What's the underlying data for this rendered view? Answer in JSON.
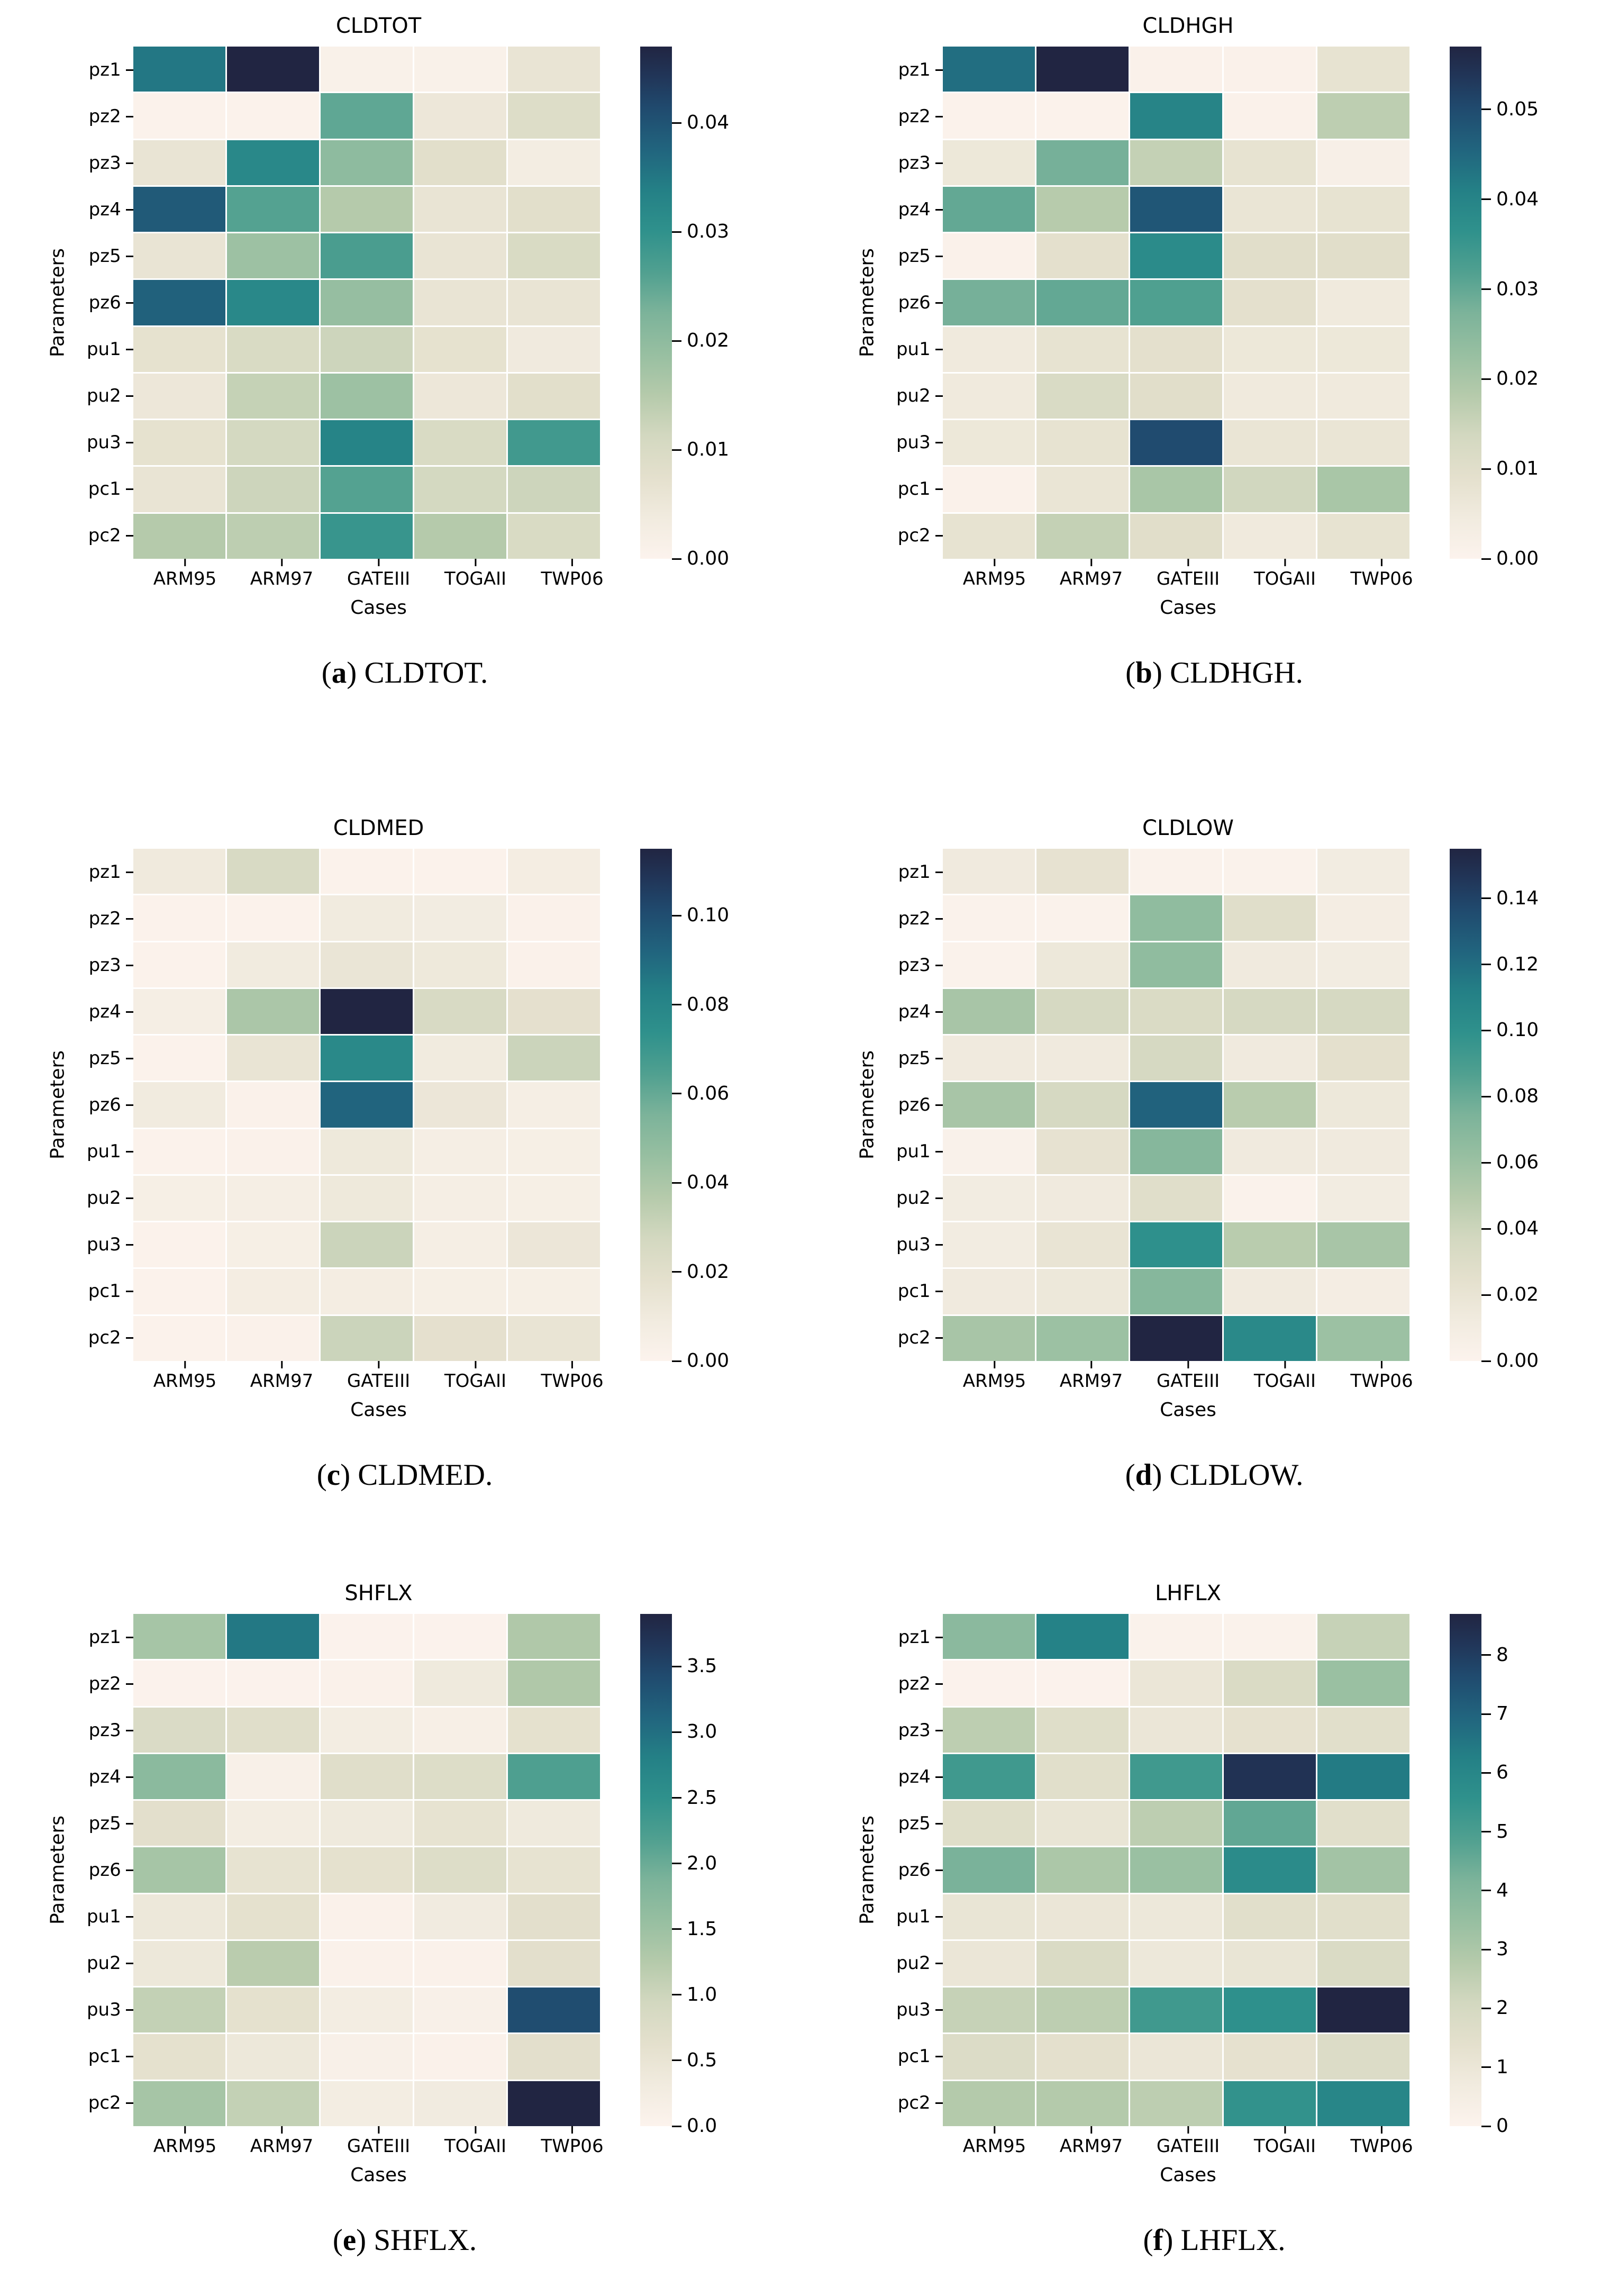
{
  "page": {
    "background": "#ffffff"
  },
  "caption_format": {
    "open": "(",
    "close": ") "
  },
  "colormap": {
    "name": "cream-sage-teal-navy",
    "stops": [
      [
        0.0,
        "#fcf3ed"
      ],
      [
        0.08,
        "#f1ebdf"
      ],
      [
        0.16,
        "#e4e0cd"
      ],
      [
        0.24,
        "#d3d8c0"
      ],
      [
        0.32,
        "#b5caab"
      ],
      [
        0.4,
        "#97bfa1"
      ],
      [
        0.48,
        "#7cb39a"
      ],
      [
        0.56,
        "#50a090"
      ],
      [
        0.64,
        "#2f918c"
      ],
      [
        0.72,
        "#248086"
      ],
      [
        0.8,
        "#21647e"
      ],
      [
        0.88,
        "#204a6e"
      ],
      [
        0.94,
        "#213659"
      ],
      [
        1.0,
        "#212542"
      ]
    ]
  },
  "chart_data": [
    {
      "type": "heatmap",
      "title": "CLDTOT",
      "caption_letter": "a",
      "caption_text": "CLDTOT.",
      "xlabel": "Cases",
      "ylabel": "Parameters",
      "x_categories": [
        "ARM95",
        "ARM97",
        "GATEIII",
        "TOGAII",
        "TWP06"
      ],
      "y_categories": [
        "pz1",
        "pz2",
        "pz3",
        "pz4",
        "pz5",
        "pz6",
        "pu1",
        "pu2",
        "pu3",
        "pc1",
        "pc2"
      ],
      "vmin": 0,
      "vmax": 0.047,
      "colorbar_ticks": [
        {
          "v": 0.0,
          "label": "0.00"
        },
        {
          "v": 0.01,
          "label": "0.01"
        },
        {
          "v": 0.02,
          "label": "0.02"
        },
        {
          "v": 0.03,
          "label": "0.03"
        },
        {
          "v": 0.04,
          "label": "0.04"
        }
      ],
      "values": [
        [
          0.035,
          0.047,
          0.001,
          0.001,
          0.006
        ],
        [
          0.0005,
          0.0005,
          0.025,
          0.005,
          0.009
        ],
        [
          0.006,
          0.032,
          0.02,
          0.008,
          0.003
        ],
        [
          0.039,
          0.026,
          0.015,
          0.006,
          0.008
        ],
        [
          0.006,
          0.018,
          0.027,
          0.006,
          0.01
        ],
        [
          0.038,
          0.032,
          0.019,
          0.006,
          0.006
        ],
        [
          0.007,
          0.01,
          0.012,
          0.007,
          0.004
        ],
        [
          0.005,
          0.013,
          0.018,
          0.005,
          0.008
        ],
        [
          0.007,
          0.011,
          0.033,
          0.01,
          0.028
        ],
        [
          0.006,
          0.012,
          0.026,
          0.011,
          0.012
        ],
        [
          0.015,
          0.014,
          0.029,
          0.015,
          0.01
        ]
      ]
    },
    {
      "type": "heatmap",
      "title": "CLDHGH",
      "caption_letter": "b",
      "caption_text": "CLDHGH.",
      "xlabel": "Cases",
      "ylabel": "Parameters",
      "x_categories": [
        "ARM95",
        "ARM97",
        "GATEIII",
        "TOGAII",
        "TWP06"
      ],
      "y_categories": [
        "pz1",
        "pz2",
        "pz3",
        "pz4",
        "pz5",
        "pz6",
        "pu1",
        "pu2",
        "pu3",
        "pc1",
        "pc2"
      ],
      "vmin": 0,
      "vmax": 0.057,
      "colorbar_ticks": [
        {
          "v": 0.0,
          "label": "0.00"
        },
        {
          "v": 0.01,
          "label": "0.01"
        },
        {
          "v": 0.02,
          "label": "0.02"
        },
        {
          "v": 0.03,
          "label": "0.03"
        },
        {
          "v": 0.04,
          "label": "0.04"
        },
        {
          "v": 0.05,
          "label": "0.05"
        }
      ],
      "values": [
        [
          0.044,
          0.057,
          0.001,
          0.001,
          0.008
        ],
        [
          0.0005,
          0.0005,
          0.04,
          0.001,
          0.017
        ],
        [
          0.006,
          0.028,
          0.016,
          0.008,
          0.002
        ],
        [
          0.03,
          0.018,
          0.048,
          0.007,
          0.008
        ],
        [
          0.001,
          0.009,
          0.038,
          0.01,
          0.01
        ],
        [
          0.028,
          0.03,
          0.032,
          0.009,
          0.005
        ],
        [
          0.005,
          0.008,
          0.009,
          0.006,
          0.006
        ],
        [
          0.005,
          0.012,
          0.01,
          0.005,
          0.005
        ],
        [
          0.006,
          0.008,
          0.05,
          0.007,
          0.007
        ],
        [
          0.001,
          0.007,
          0.02,
          0.014,
          0.02
        ],
        [
          0.008,
          0.016,
          0.01,
          0.005,
          0.008
        ]
      ]
    },
    {
      "type": "heatmap",
      "title": "CLDMED",
      "caption_letter": "c",
      "caption_text": "CLDMED.",
      "xlabel": "Cases",
      "ylabel": "Parameters",
      "x_categories": [
        "ARM95",
        "ARM97",
        "GATEIII",
        "TOGAII",
        "TWP06"
      ],
      "y_categories": [
        "pz1",
        "pz2",
        "pz3",
        "pz4",
        "pz5",
        "pz6",
        "pu1",
        "pu2",
        "pu3",
        "pc1",
        "pc2"
      ],
      "vmin": 0,
      "vmax": 0.115,
      "colorbar_ticks": [
        {
          "v": 0.0,
          "label": "0.00"
        },
        {
          "v": 0.02,
          "label": "0.02"
        },
        {
          "v": 0.04,
          "label": "0.04"
        },
        {
          "v": 0.06,
          "label": "0.06"
        },
        {
          "v": 0.08,
          "label": "0.08"
        },
        {
          "v": 0.1,
          "label": "0.10"
        }
      ],
      "values": [
        [
          0.01,
          0.025,
          0.001,
          0.001,
          0.007
        ],
        [
          0.001,
          0.001,
          0.009,
          0.008,
          0.002
        ],
        [
          0.001,
          0.009,
          0.014,
          0.011,
          0.002
        ],
        [
          0.006,
          0.04,
          0.115,
          0.025,
          0.018
        ],
        [
          0.001,
          0.015,
          0.078,
          0.009,
          0.03
        ],
        [
          0.009,
          0.002,
          0.092,
          0.013,
          0.006
        ],
        [
          0.001,
          0.002,
          0.011,
          0.006,
          0.005
        ],
        [
          0.005,
          0.006,
          0.011,
          0.006,
          0.005
        ],
        [
          0.001,
          0.005,
          0.03,
          0.006,
          0.013
        ],
        [
          0.001,
          0.007,
          0.007,
          0.005,
          0.005
        ],
        [
          0.001,
          0.002,
          0.03,
          0.018,
          0.015
        ]
      ]
    },
    {
      "type": "heatmap",
      "title": "CLDLOW",
      "caption_letter": "d",
      "caption_text": "CLDLOW.",
      "xlabel": "Cases",
      "ylabel": "Parameters",
      "x_categories": [
        "ARM95",
        "ARM97",
        "GATEIII",
        "TOGAII",
        "TWP06"
      ],
      "y_categories": [
        "pz1",
        "pz2",
        "pz3",
        "pz4",
        "pz5",
        "pz6",
        "pu1",
        "pu2",
        "pu3",
        "pc1",
        "pc2"
      ],
      "vmin": 0,
      "vmax": 0.155,
      "colorbar_ticks": [
        {
          "v": 0.0,
          "label": "0.00"
        },
        {
          "v": 0.02,
          "label": "0.02"
        },
        {
          "v": 0.04,
          "label": "0.04"
        },
        {
          "v": 0.06,
          "label": "0.06"
        },
        {
          "v": 0.08,
          "label": "0.08"
        },
        {
          "v": 0.1,
          "label": "0.10"
        },
        {
          "v": 0.12,
          "label": "0.12"
        },
        {
          "v": 0.14,
          "label": "0.14"
        }
      ],
      "values": [
        [
          0.013,
          0.022,
          0.002,
          0.002,
          0.011
        ],
        [
          0.002,
          0.002,
          0.065,
          0.028,
          0.009
        ],
        [
          0.002,
          0.016,
          0.065,
          0.013,
          0.011
        ],
        [
          0.055,
          0.035,
          0.032,
          0.035,
          0.035
        ],
        [
          0.013,
          0.013,
          0.035,
          0.013,
          0.025
        ],
        [
          0.055,
          0.035,
          0.125,
          0.048,
          0.016
        ],
        [
          0.003,
          0.022,
          0.07,
          0.013,
          0.013
        ],
        [
          0.011,
          0.013,
          0.028,
          0.002,
          0.011
        ],
        [
          0.011,
          0.02,
          0.1,
          0.048,
          0.055
        ],
        [
          0.013,
          0.016,
          0.07,
          0.013,
          0.009
        ],
        [
          0.055,
          0.06,
          0.155,
          0.105,
          0.06
        ]
      ]
    },
    {
      "type": "heatmap",
      "title": "SHFLX",
      "caption_letter": "e",
      "caption_text": "SHFLX.",
      "xlabel": "Cases",
      "ylabel": "Parameters",
      "x_categories": [
        "ARM95",
        "ARM97",
        "GATEIII",
        "TOGAII",
        "TWP06"
      ],
      "y_categories": [
        "pz1",
        "pz2",
        "pz3",
        "pz4",
        "pz5",
        "pz6",
        "pu1",
        "pu2",
        "pu3",
        "pc1",
        "pc2"
      ],
      "vmin": 0,
      "vmax": 3.9,
      "colorbar_ticks": [
        {
          "v": 0.0,
          "label": "0.0"
        },
        {
          "v": 0.5,
          "label": "0.5"
        },
        {
          "v": 1.0,
          "label": "1.0"
        },
        {
          "v": 1.5,
          "label": "1.5"
        },
        {
          "v": 2.0,
          "label": "2.0"
        },
        {
          "v": 2.5,
          "label": "2.5"
        },
        {
          "v": 3.0,
          "label": "3.0"
        },
        {
          "v": 3.5,
          "label": "3.5"
        }
      ],
      "values": [
        [
          1.4,
          2.9,
          0.02,
          0.02,
          1.3
        ],
        [
          0.03,
          0.03,
          0.06,
          0.35,
          1.3
        ],
        [
          0.8,
          0.7,
          0.25,
          0.15,
          0.6
        ],
        [
          1.7,
          0.12,
          0.7,
          0.75,
          2.2
        ],
        [
          0.65,
          0.25,
          0.35,
          0.55,
          0.35
        ],
        [
          1.4,
          0.55,
          0.6,
          0.75,
          0.55
        ],
        [
          0.4,
          0.6,
          0.06,
          0.3,
          0.65
        ],
        [
          0.4,
          1.2,
          0.06,
          0.06,
          0.65
        ],
        [
          1.1,
          0.6,
          0.25,
          0.12,
          3.4
        ],
        [
          0.6,
          0.4,
          0.12,
          0.06,
          0.65
        ],
        [
          1.4,
          1.1,
          0.25,
          0.3,
          3.9
        ]
      ]
    },
    {
      "type": "heatmap",
      "title": "LHFLX",
      "caption_letter": "f",
      "caption_text": "LHFLX.",
      "xlabel": "Cases",
      "ylabel": "Parameters",
      "x_categories": [
        "ARM95",
        "ARM97",
        "GATEIII",
        "TOGAII",
        "TWP06"
      ],
      "y_categories": [
        "pz1",
        "pz2",
        "pz3",
        "pz4",
        "pz5",
        "pz6",
        "pu1",
        "pu2",
        "pu3",
        "pc1",
        "pc2"
      ],
      "vmin": 0,
      "vmax": 8.7,
      "colorbar_ticks": [
        {
          "v": 0,
          "label": "0"
        },
        {
          "v": 1,
          "label": "1"
        },
        {
          "v": 2,
          "label": "2"
        },
        {
          "v": 3,
          "label": "3"
        },
        {
          "v": 4,
          "label": "4"
        },
        {
          "v": 5,
          "label": "5"
        },
        {
          "v": 6,
          "label": "6"
        },
        {
          "v": 7,
          "label": "7"
        },
        {
          "v": 8,
          "label": "8"
        }
      ],
      "values": [
        [
          3.8,
          6.2,
          0.1,
          0.1,
          2.4
        ],
        [
          0.05,
          0.05,
          1.0,
          1.8,
          3.4
        ],
        [
          2.6,
          1.6,
          1.0,
          1.3,
          1.5
        ],
        [
          5.2,
          1.5,
          5.2,
          8.3,
          6.4
        ],
        [
          1.6,
          1.1,
          2.6,
          4.6,
          1.5
        ],
        [
          4.2,
          3.0,
          3.4,
          5.8,
          3.2
        ],
        [
          1.1,
          1.0,
          0.9,
          1.5,
          1.5
        ],
        [
          1.0,
          1.8,
          0.9,
          1.1,
          1.8
        ],
        [
          2.4,
          2.6,
          5.2,
          5.6,
          8.7
        ],
        [
          1.7,
          1.4,
          1.0,
          1.3,
          1.7
        ],
        [
          2.8,
          2.8,
          2.6,
          5.5,
          6.0
        ]
      ]
    }
  ]
}
